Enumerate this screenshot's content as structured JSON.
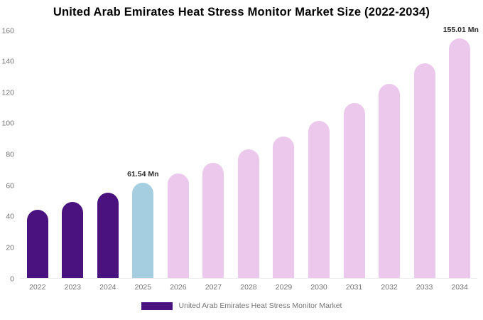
{
  "chart_data": {
    "type": "bar",
    "title": "United Arab Emirates Heat Stress Monitor Market Size (2022-2034)",
    "categories": [
      "2022",
      "2023",
      "2024",
      "2025",
      "2026",
      "2027",
      "2028",
      "2029",
      "2030",
      "2031",
      "2032",
      "2033",
      "2034"
    ],
    "values": [
      44,
      49,
      55,
      61.54,
      67.5,
      74.5,
      83,
      91.5,
      101.5,
      113,
      125.5,
      139,
      155.01
    ],
    "unit": "Mn",
    "ylim": [
      0,
      160
    ],
    "yticks": [
      0,
      20,
      40,
      60,
      80,
      100,
      120,
      140,
      160
    ],
    "grid": "off",
    "legend_position": "bottom",
    "bar_colors": [
      "#49127e",
      "#49127e",
      "#49127e",
      "#a5cee0",
      "#ecc9ec",
      "#ecc9ec",
      "#ecc9ec",
      "#ecc9ec",
      "#ecc9ec",
      "#ecc9ec",
      "#ecc9ec",
      "#ecc9ec",
      "#ecc9ec"
    ],
    "annotations": [
      {
        "index": 3,
        "text": "61.54 Mn"
      },
      {
        "index": 12,
        "text": "155.01 Mn"
      }
    ],
    "legend": {
      "label": "United Arab Emirates Heat Stress Monitor Market",
      "color": "#49127e"
    }
  }
}
